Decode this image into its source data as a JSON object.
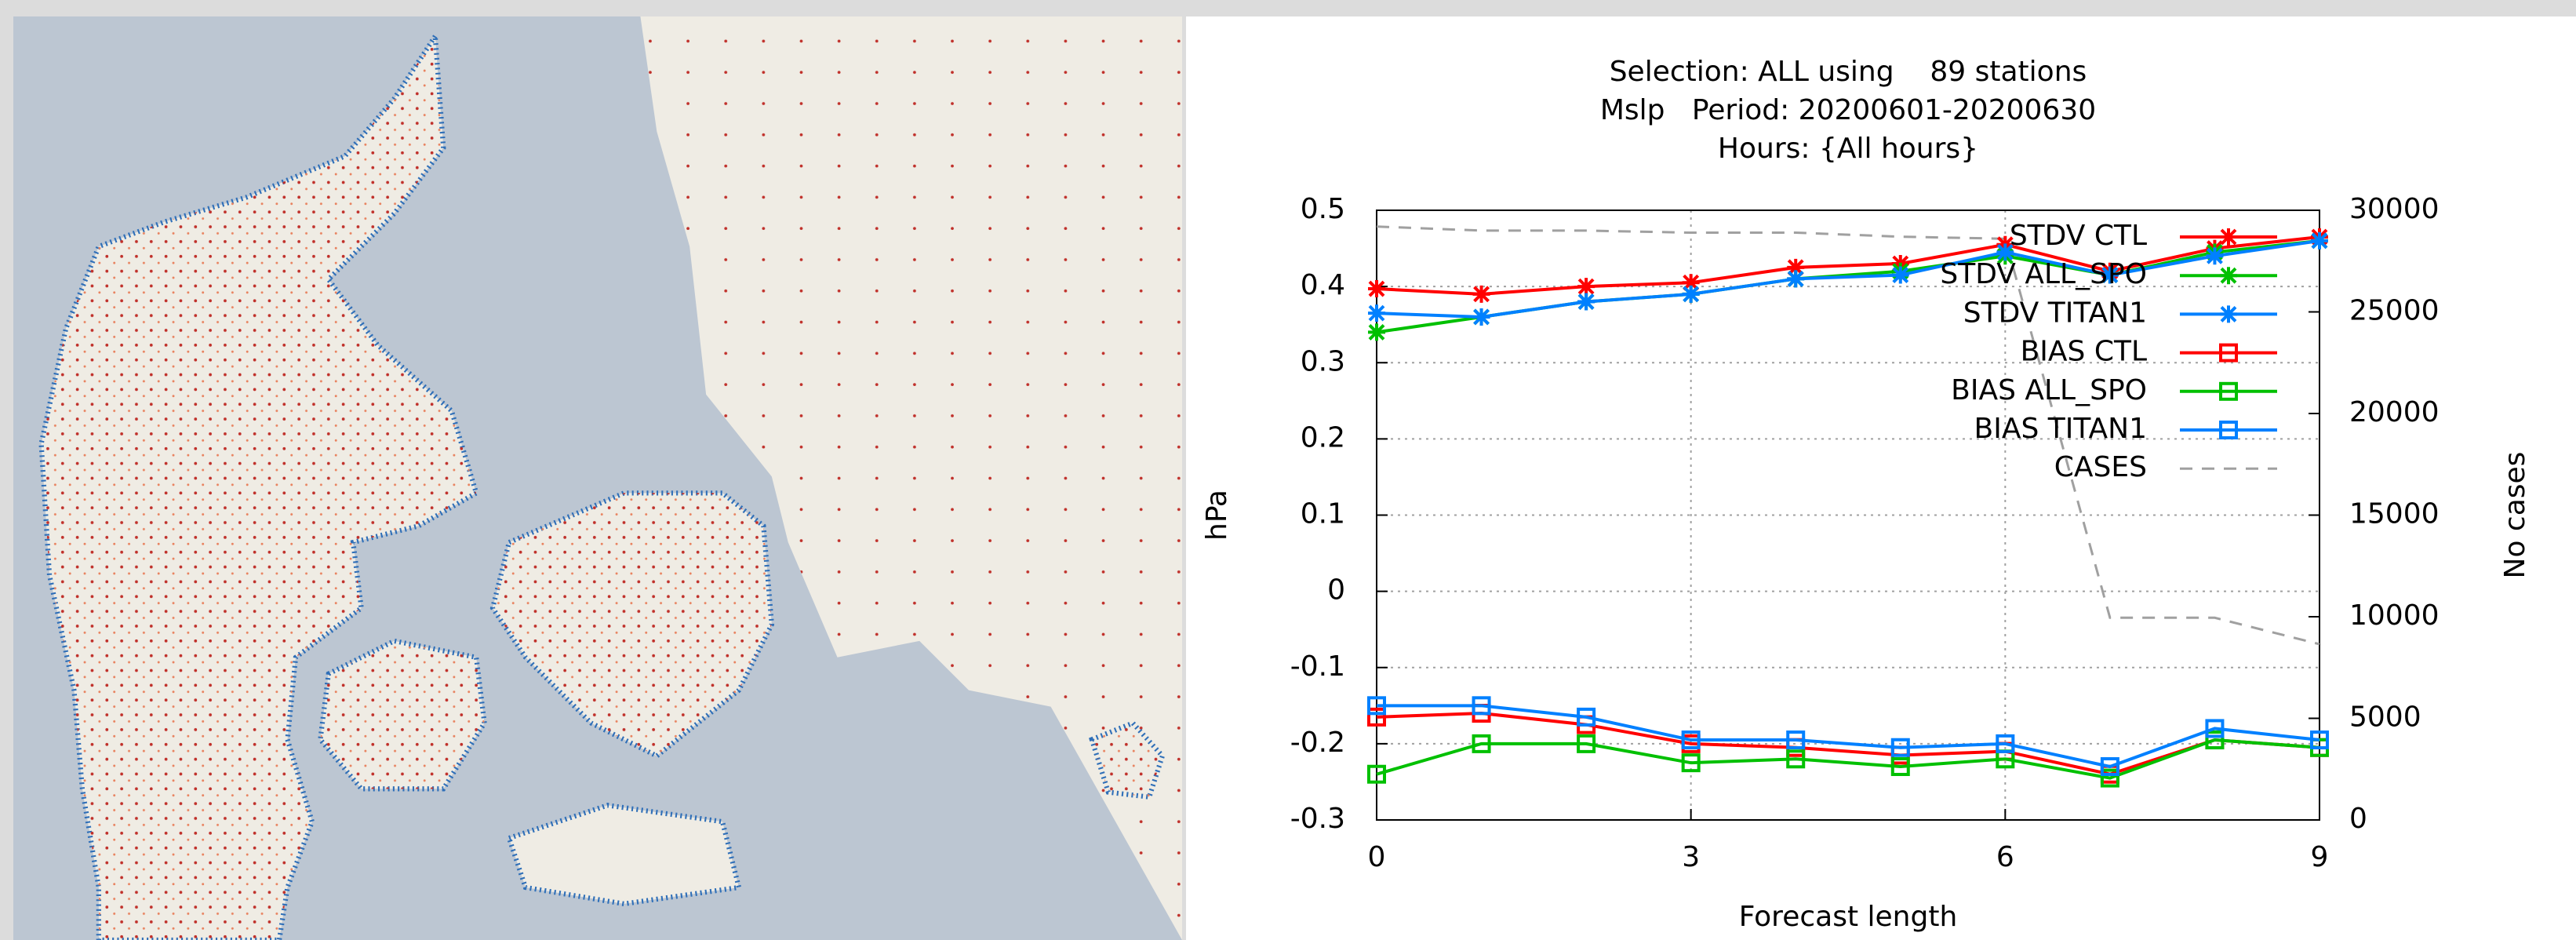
{
  "chart_data": {
    "type": "line",
    "title_lines": [
      "Selection: ALL using    89 stations",
      "Mslp   Period: 20200601-20200630",
      "Hours: {All hours}"
    ],
    "xlabel": "Forecast length",
    "ylabel": "hPa",
    "y2label": "No cases",
    "x": [
      0,
      1,
      2,
      3,
      4,
      5,
      6,
      7,
      8,
      9
    ],
    "xlim": [
      0,
      9
    ],
    "xticks": [
      0,
      3,
      6,
      9
    ],
    "ylim": [
      -0.3,
      0.5
    ],
    "yticks": [
      -0.3,
      -0.2,
      -0.1,
      0,
      0.1,
      0.2,
      0.3,
      0.4,
      0.5
    ],
    "y2lim": [
      0,
      30000
    ],
    "y2ticks": [
      0,
      5000,
      10000,
      15000,
      20000,
      25000,
      30000
    ],
    "grid": true,
    "series": [
      {
        "name": "STDV CTL",
        "color": "#ff0000",
        "marker": "star",
        "values": [
          0.397,
          0.39,
          0.4,
          0.405,
          0.425,
          0.43,
          0.455,
          0.42,
          0.45,
          0.465
        ]
      },
      {
        "name": "STDV ALL_SPO",
        "color": "#00c000",
        "marker": "star",
        "values": [
          0.34,
          0.36,
          0.38,
          0.39,
          0.41,
          0.42,
          0.44,
          0.415,
          0.445,
          0.46
        ]
      },
      {
        "name": "STDV TITAN1",
        "color": "#0080ff",
        "marker": "star",
        "values": [
          0.365,
          0.36,
          0.38,
          0.39,
          0.41,
          0.415,
          0.445,
          0.415,
          0.44,
          0.46
        ]
      },
      {
        "name": "BIAS CTL",
        "color": "#ff0000",
        "marker": "square",
        "values": [
          -0.165,
          -0.16,
          -0.175,
          -0.2,
          -0.205,
          -0.215,
          -0.21,
          -0.24,
          -0.195,
          -0.205
        ]
      },
      {
        "name": "BIAS ALL_SPO",
        "color": "#00c000",
        "marker": "square",
        "values": [
          -0.24,
          -0.2,
          -0.2,
          -0.225,
          -0.22,
          -0.23,
          -0.22,
          -0.245,
          -0.195,
          -0.205
        ]
      },
      {
        "name": "BIAS TITAN1",
        "color": "#0080ff",
        "marker": "square",
        "values": [
          -0.15,
          -0.15,
          -0.165,
          -0.195,
          -0.195,
          -0.205,
          -0.2,
          -0.23,
          -0.18,
          -0.195
        ]
      },
      {
        "name": "CASES",
        "color": "#a0a0a0",
        "marker": "none",
        "dashed": true,
        "axis": "y2",
        "values": [
          29200,
          29000,
          29000,
          28900,
          28900,
          28700,
          28600,
          9950,
          9950,
          8650
        ]
      }
    ]
  }
}
